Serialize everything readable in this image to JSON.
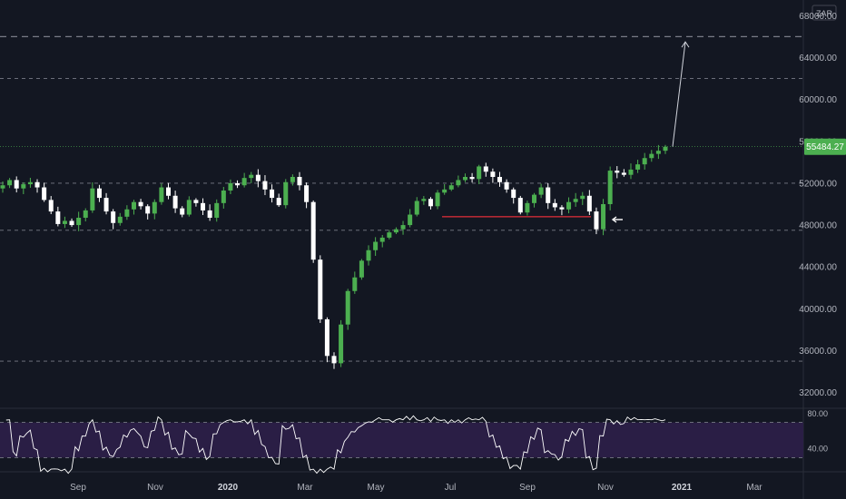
{
  "colors": {
    "background": "#131722",
    "up_candle": "#26a69a",
    "up_candle_green": "#4caf50",
    "down_candle": "#ffffff",
    "grid_dashed": "#787b86",
    "support_line": "#b22833",
    "arrow": "#d1d4dc",
    "price_tag": "#4caf50",
    "rsi_band": "#2a1e45",
    "rsi_line": "#ffffff"
  },
  "currency": "ZAR",
  "last_price_label": "55484.27",
  "chart_data": {
    "type": "candlestick",
    "price_axis": {
      "ticks": [
        "68000.00",
        "64000.00",
        "60000.00",
        "56000.00",
        "52000.00",
        "48000.00",
        "44000.00",
        "40000.00",
        "36000.00",
        "32000.00"
      ],
      "ylim": [
        30500,
        69500
      ]
    },
    "time_axis": {
      "labels": [
        "Sep",
        "Nov",
        "2020",
        "Mar",
        "May",
        "Jul",
        "Sep",
        "Nov",
        "2021",
        "Mar"
      ],
      "bold": [
        "2020",
        "2021"
      ]
    },
    "horizontal_levels": [
      66000,
      62000,
      52000,
      47500,
      35000
    ],
    "last_price": 55484.27,
    "support_line": {
      "value": 48800,
      "from": "2020-06-25",
      "to": "2020-10-20"
    },
    "projection_arrow": {
      "from": 55500,
      "to": 65500
    },
    "series": [
      {
        "values": [
          51800,
          52300,
          51500,
          51900,
          52100,
          51600,
          50400,
          49300,
          48100,
          48400,
          48000,
          48700,
          49400,
          51500,
          50600,
          49300,
          48200,
          48800,
          49500,
          50200,
          49800,
          49100,
          50200,
          51600,
          50800,
          49600,
          49000,
          50400,
          50100,
          49400,
          48700,
          50100,
          51300,
          52000,
          51800,
          52500,
          52800,
          52200,
          51400,
          50600,
          49900,
          52100,
          52600,
          51800,
          50200,
          44700,
          39000,
          35500,
          34800,
          38500,
          41700,
          43000,
          44600,
          45600,
          46400,
          46800,
          47300,
          47600,
          48000,
          49000,
          50300,
          50500,
          49800,
          51100,
          51400,
          51800,
          52300,
          52600,
          52400,
          53600,
          53100,
          52600,
          52100,
          51400,
          50600,
          49200,
          50100,
          50900,
          51600,
          50100,
          49700,
          49500,
          50200,
          50500,
          50800,
          49300,
          47600,
          50000,
          53200,
          53000,
          52800,
          53300,
          53800,
          54400,
          54800,
          55100,
          55484
        ]
      }
    ],
    "rsi": {
      "levels": [
        70,
        30
      ],
      "axis_ticks": [
        "80.00",
        "40.00"
      ],
      "range": [
        15,
        85
      ]
    }
  }
}
